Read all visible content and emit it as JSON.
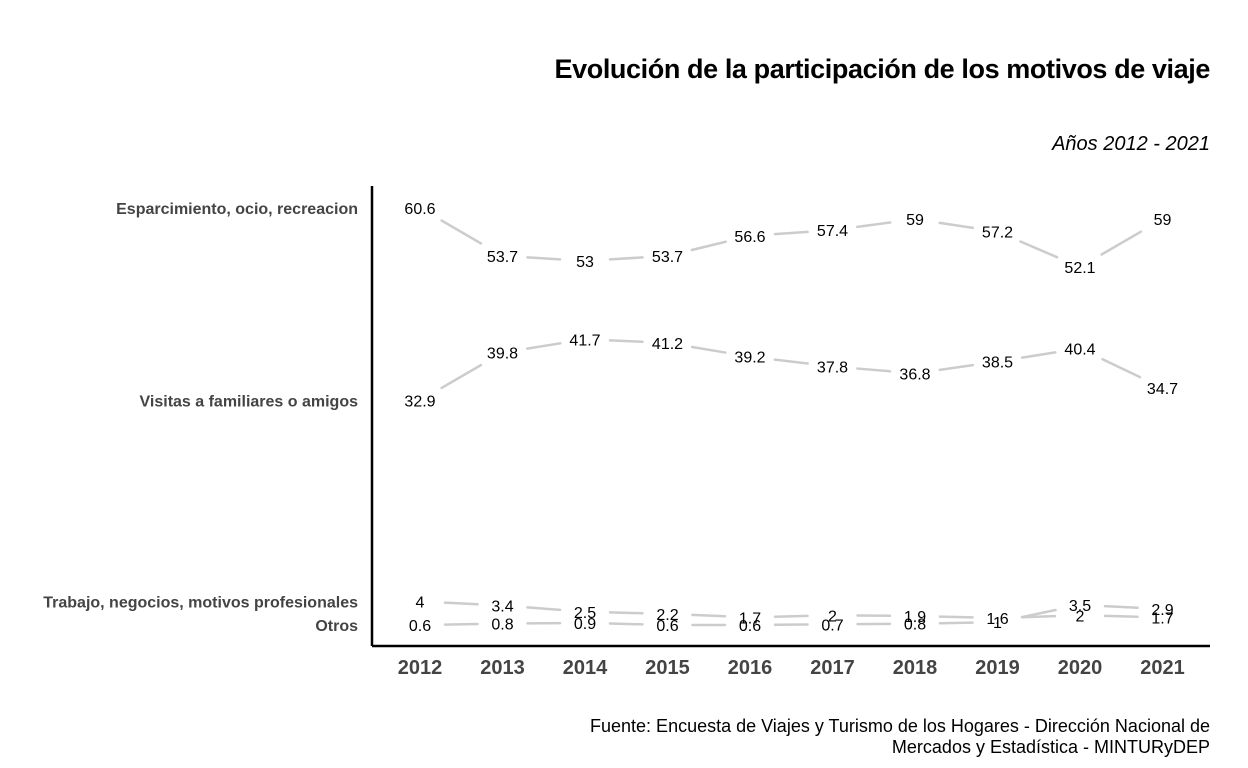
{
  "title": "Evolución de la participación de los motivos de viaje",
  "subtitle": "Años 2012 - 2021",
  "source_line1": "Fuente: Encuesta de Viajes y Turismo de los Hogares - Dirección Nacional de",
  "source_line2": "Mercados y Estadística - MINTURyDEP",
  "colors": {
    "line": "#cccccc",
    "axis": "#000000",
    "category_label": "#444444",
    "value_label": "#000000"
  },
  "chart_data": {
    "type": "line",
    "x": [
      "2012",
      "2013",
      "2014",
      "2015",
      "2016",
      "2017",
      "2018",
      "2019",
      "2020",
      "2021"
    ],
    "series": [
      {
        "name": "Esparcimiento, ocio, recreacion",
        "values": [
          60.6,
          53.7,
          53,
          53.7,
          56.6,
          57.4,
          59,
          57.2,
          52.1,
          59
        ]
      },
      {
        "name": "Visitas a familiares o amigos",
        "values": [
          32.9,
          39.8,
          41.7,
          41.2,
          39.2,
          37.8,
          36.8,
          38.5,
          40.4,
          34.7
        ]
      },
      {
        "name": "Trabajo, negocios, motivos profesionales",
        "values": [
          4,
          3.4,
          2.5,
          2.2,
          1.7,
          2,
          1.9,
          1.6,
          2,
          1.7
        ]
      },
      {
        "name": "Otros",
        "values": [
          0.6,
          0.8,
          0.9,
          0.6,
          0.6,
          0.7,
          0.8,
          1,
          3.5,
          2.9
        ]
      }
    ],
    "ylim": [
      0,
      62
    ],
    "grid": false,
    "legend": "labels at left of first point"
  }
}
